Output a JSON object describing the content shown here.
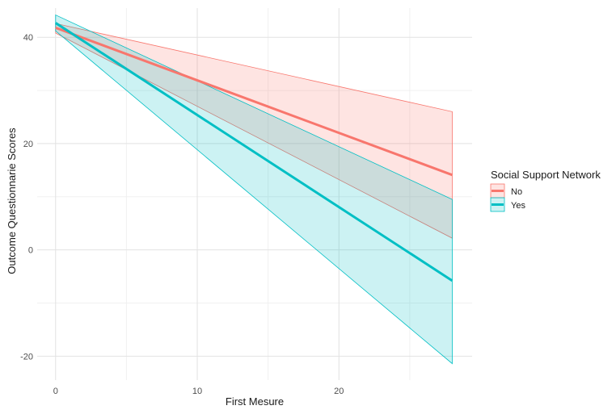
{
  "chart_data": {
    "type": "line",
    "xlabel": "First Mesure",
    "ylabel": "Outcome Questionnarie Scores",
    "xlim": [
      -1.3,
      29.4
    ],
    "ylim": [
      -24.5,
      45.5
    ],
    "x_ticks": [
      0,
      10,
      20
    ],
    "x_minor_ticks": [
      5,
      15,
      25
    ],
    "y_ticks": [
      -20,
      0,
      20,
      40
    ],
    "y_minor_ticks": [
      -10,
      10,
      30
    ],
    "grid": true,
    "legend": {
      "title": "Social Support Network",
      "position": "right"
    },
    "series": [
      {
        "name": "No",
        "color": "#F8766D",
        "fill": "#FFE0E0",
        "x": [
          0,
          28
        ],
        "fit": [
          41.8,
          14.1
        ],
        "lower": [
          40.8,
          2.2
        ],
        "upper": [
          42.6,
          26.0
        ]
      },
      {
        "name": "Yes",
        "color": "#00BFC4",
        "fill": "#CFF0F1",
        "x": [
          0,
          28
        ],
        "fit": [
          42.7,
          -5.8
        ],
        "lower": [
          41.2,
          -21.4
        ],
        "upper": [
          44.2,
          9.5
        ]
      }
    ],
    "overlap_fill": "#CDDEDE"
  }
}
